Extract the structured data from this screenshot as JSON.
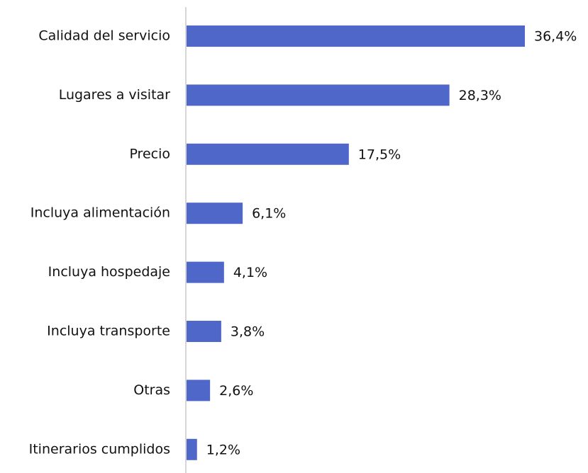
{
  "chart_data": {
    "type": "bar",
    "orientation": "horizontal",
    "categories": [
      "Calidad del servicio",
      "Lugares a visitar",
      "Precio",
      "Incluya alimentación",
      "Incluya hospedaje",
      "Incluya transporte",
      "Otras",
      "Itinerarios cumplidos"
    ],
    "values": [
      36.4,
      28.3,
      17.5,
      6.1,
      4.1,
      3.8,
      2.6,
      1.2
    ],
    "value_labels": [
      "36,4%",
      "28,3%",
      "17,5%",
      "6,1%",
      "4,1%",
      "3,8%",
      "2,6%",
      "1,2%"
    ],
    "color": "#4f67c9"
  }
}
